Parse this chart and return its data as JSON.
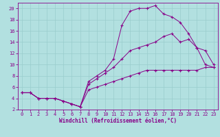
{
  "xlabel": "Windchill (Refroidissement éolien,°C)",
  "bg_color": "#b2e0e0",
  "line_color": "#880088",
  "xlim": [
    -0.5,
    23.5
  ],
  "ylim": [
    2,
    21
  ],
  "xticks": [
    0,
    1,
    2,
    3,
    4,
    5,
    6,
    7,
    8,
    9,
    10,
    11,
    12,
    13,
    14,
    15,
    16,
    17,
    18,
    19,
    20,
    21,
    22,
    23
  ],
  "yticks": [
    2,
    4,
    6,
    8,
    10,
    12,
    14,
    16,
    18,
    20
  ],
  "line1_x": [
    0,
    1,
    2,
    3,
    4,
    5,
    6,
    7,
    8,
    9,
    10,
    11,
    12,
    13,
    14,
    15,
    16,
    17,
    18,
    19,
    20,
    21,
    22,
    23
  ],
  "line1_y": [
    5,
    5,
    4,
    4,
    4,
    3.5,
    3,
    2.5,
    7,
    8,
    9,
    11,
    17,
    19.5,
    20,
    20,
    20.5,
    19,
    18.5,
    17.5,
    15.5,
    13,
    10,
    9.5
  ],
  "line2_x": [
    0,
    1,
    2,
    3,
    4,
    5,
    6,
    7,
    8,
    9,
    10,
    11,
    12,
    13,
    14,
    15,
    16,
    17,
    18,
    19,
    20,
    21,
    22,
    23
  ],
  "line2_y": [
    5,
    5,
    4,
    4,
    4,
    3.5,
    3,
    2.5,
    6.5,
    7.5,
    8.5,
    9.5,
    11,
    12.5,
    13,
    13.5,
    14,
    15,
    15.5,
    14,
    14.5,
    13,
    12.5,
    10
  ],
  "line3_x": [
    0,
    1,
    2,
    3,
    4,
    5,
    6,
    7,
    8,
    9,
    10,
    11,
    12,
    13,
    14,
    15,
    16,
    17,
    18,
    19,
    20,
    21,
    22,
    23
  ],
  "line3_y": [
    5,
    5,
    4,
    4,
    4,
    3.5,
    3,
    2.5,
    5.5,
    6,
    6.5,
    7,
    7.5,
    8,
    8.5,
    9,
    9,
    9,
    9,
    9,
    9,
    9,
    9.5,
    9.5
  ],
  "grid_color": "#99cccc",
  "tick_fontsize": 5.0,
  "label_fontsize": 5.5
}
